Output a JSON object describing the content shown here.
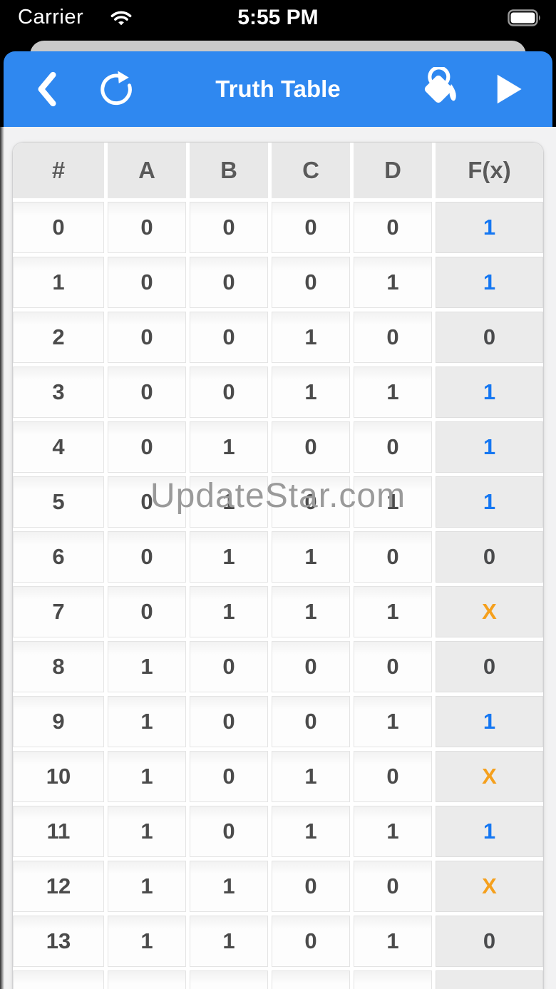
{
  "status_bar": {
    "carrier": "Carrier",
    "time": "5:55 PM"
  },
  "nav_bar": {
    "title": "Truth Table"
  },
  "watermark": {
    "text": "UpdateStar.com"
  },
  "colors": {
    "nav_blue": "#2f88f0",
    "value_blue": "#1577f2",
    "value_orange": "#f5a01d",
    "value_dark": "#4a4b4d",
    "header_gray": "#e8e8e8",
    "content_bg": "#f2f2f3"
  },
  "table": {
    "headers": [
      "#",
      "A",
      "B",
      "C",
      "D",
      "F(x)"
    ],
    "rows": [
      {
        "cells": [
          "0",
          "0",
          "0",
          "0",
          "0"
        ],
        "f": "1",
        "f_style": "blue"
      },
      {
        "cells": [
          "1",
          "0",
          "0",
          "0",
          "1"
        ],
        "f": "1",
        "f_style": "blue"
      },
      {
        "cells": [
          "2",
          "0",
          "0",
          "1",
          "0"
        ],
        "f": "0",
        "f_style": "dark"
      },
      {
        "cells": [
          "3",
          "0",
          "0",
          "1",
          "1"
        ],
        "f": "1",
        "f_style": "blue"
      },
      {
        "cells": [
          "4",
          "0",
          "1",
          "0",
          "0"
        ],
        "f": "1",
        "f_style": "blue"
      },
      {
        "cells": [
          "5",
          "0",
          "1",
          "0",
          "1"
        ],
        "f": "1",
        "f_style": "blue"
      },
      {
        "cells": [
          "6",
          "0",
          "1",
          "1",
          "0"
        ],
        "f": "0",
        "f_style": "dark"
      },
      {
        "cells": [
          "7",
          "0",
          "1",
          "1",
          "1"
        ],
        "f": "X",
        "f_style": "orange"
      },
      {
        "cells": [
          "8",
          "1",
          "0",
          "0",
          "0"
        ],
        "f": "0",
        "f_style": "dark"
      },
      {
        "cells": [
          "9",
          "1",
          "0",
          "0",
          "1"
        ],
        "f": "1",
        "f_style": "blue"
      },
      {
        "cells": [
          "10",
          "1",
          "0",
          "1",
          "0"
        ],
        "f": "X",
        "f_style": "orange"
      },
      {
        "cells": [
          "11",
          "1",
          "0",
          "1",
          "1"
        ],
        "f": "1",
        "f_style": "blue"
      },
      {
        "cells": [
          "12",
          "1",
          "1",
          "0",
          "0"
        ],
        "f": "X",
        "f_style": "orange"
      },
      {
        "cells": [
          "13",
          "1",
          "1",
          "0",
          "1"
        ],
        "f": "0",
        "f_style": "dark"
      }
    ],
    "partial_next_row": true
  }
}
